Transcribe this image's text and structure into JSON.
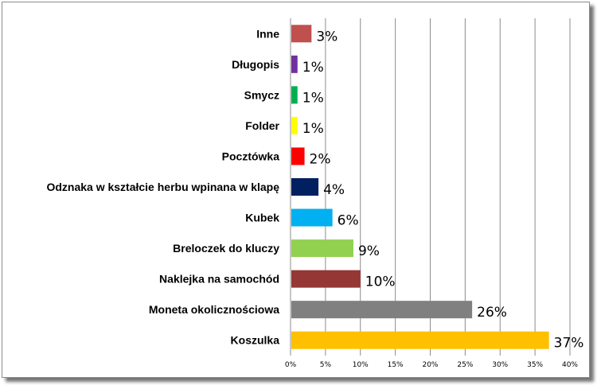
{
  "chart_data": {
    "type": "bar",
    "orientation": "horizontal",
    "categories": [
      "Koszulka",
      "Moneta okolicznościowa",
      "Naklejka na samochód",
      "Breloczek do kluczy",
      "Kubek",
      "Odznaka w kształcie herbu wpinana w klapę",
      "Pocztówka",
      "Folder",
      "Smycz",
      "Długopis",
      "Inne"
    ],
    "values": [
      37,
      26,
      10,
      9,
      6,
      4,
      2,
      1,
      1,
      1,
      3
    ],
    "value_labels": [
      "37%",
      "26%",
      "10%",
      "9%",
      "6%",
      "4%",
      "2%",
      "1%",
      "1%",
      "1%",
      "3%"
    ],
    "colors": [
      "#FFC000",
      "#808080",
      "#953735",
      "#92D050",
      "#00B0F0",
      "#002060",
      "#FF0000",
      "#FFFF00",
      "#00B050",
      "#7030A0",
      "#C0504D"
    ],
    "title": "",
    "xlabel": "",
    "ylabel": "",
    "xlim": [
      0,
      40
    ],
    "x_ticks": [
      "0%",
      "5%",
      "10%",
      "15%",
      "20%",
      "25%",
      "30%",
      "35%",
      "40%"
    ],
    "grid": "vertical",
    "legend": "none"
  }
}
